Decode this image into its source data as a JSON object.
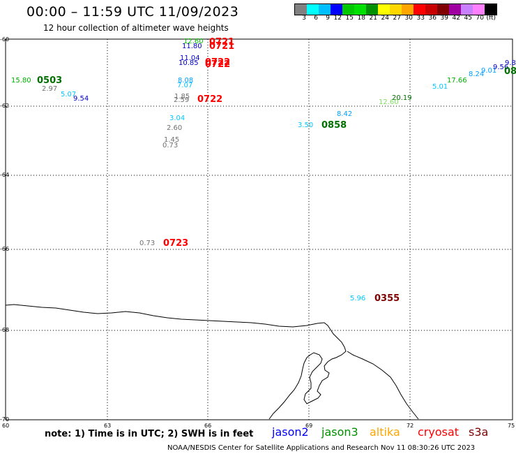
{
  "header": {
    "title": "00:00 – 11:59 UTC 11/09/2023",
    "subtitle": "12 hour collection of altimeter wave heights"
  },
  "color_scale": {
    "labels": [
      "3",
      "6",
      "9",
      "12",
      "15",
      "18",
      "21",
      "24",
      "27",
      "30",
      "33",
      "36",
      "39",
      "42",
      "45",
      "70",
      "(ft)"
    ],
    "colors": [
      "#808080",
      "#00ffff",
      "#00bfff",
      "#0000ff",
      "#00c800",
      "#00e000",
      "#009000",
      "#ffff00",
      "#ffd700",
      "#ffa500",
      "#ff0000",
      "#c80000",
      "#800000",
      "#a000a0",
      "#c880ff",
      "#ff80ff",
      "#000000"
    ]
  },
  "axes": {
    "lat_labels": [
      "-60",
      "-62",
      "-64",
      "-66",
      "-68",
      "-70"
    ],
    "lon_labels": [
      "60",
      "63",
      "66",
      "69",
      "72",
      "75"
    ]
  },
  "wave_heights": [
    {
      "text": "15.80",
      "color": "#00b000"
    },
    {
      "text": "2.97",
      "color": "#707070"
    },
    {
      "text": "5.07",
      "color": "#00c8ff"
    },
    {
      "text": "9.54",
      "color": "#0000c8"
    },
    {
      "text": "12.60",
      "color": "#00c800"
    },
    {
      "text": "11.80",
      "color": "#0000c8"
    },
    {
      "text": "11.04",
      "color": "#0000c8"
    },
    {
      "text": "10.85",
      "color": "#0000c8"
    },
    {
      "text": "8.08",
      "color": "#00a0ff"
    },
    {
      "text": "7.07",
      "color": "#00c8ff"
    },
    {
      "text": "1.85",
      "color": "#707070"
    },
    {
      "text": "2.59",
      "color": "#707070"
    },
    {
      "text": "3.04",
      "color": "#00c8ff"
    },
    {
      "text": "2.60",
      "color": "#707070"
    },
    {
      "text": "1.45",
      "color": "#707070"
    },
    {
      "text": "0.73",
      "color": "#707070"
    },
    {
      "text": "0.73",
      "color": "#707070"
    },
    {
      "text": "3.50",
      "color": "#00c8ff"
    },
    {
      "text": "8.42",
      "color": "#00a0ff"
    },
    {
      "text": "12.60",
      "color": "#80e060"
    },
    {
      "text": "20.19",
      "color": "#007000"
    },
    {
      "text": "5.01",
      "color": "#00c8ff"
    },
    {
      "text": "17.66",
      "color": "#00b000"
    },
    {
      "text": "8.24",
      "color": "#00a0ff"
    },
    {
      "text": "9.01",
      "color": "#00a0ff"
    },
    {
      "text": "9.56",
      "color": "#0000c8"
    },
    {
      "text": "9.8",
      "color": "#0000c8"
    },
    {
      "text": "5.96",
      "color": "#00c8ff"
    }
  ],
  "pass_times": [
    {
      "text": "0503",
      "color": "#007000"
    },
    {
      "text": "0721",
      "color": "#ff0000"
    },
    {
      "text": "0721",
      "color": "#ff0000"
    },
    {
      "text": "0722",
      "color": "#ff0000"
    },
    {
      "text": "0722",
      "color": "#ff0000"
    },
    {
      "text": "0722",
      "color": "#ff0000"
    },
    {
      "text": "0858",
      "color": "#007000"
    },
    {
      "text": "08",
      "color": "#007000"
    },
    {
      "text": "0723",
      "color": "#ff0000"
    },
    {
      "text": "0355",
      "color": "#800000"
    }
  ],
  "note": "note: 1) Time is in UTC; 2) SWH is in feet",
  "satellites": [
    {
      "name": "jason2",
      "color": "#0000ff"
    },
    {
      "name": "jason3",
      "color": "#009000"
    },
    {
      "name": "altika",
      "color": "#ffa500"
    },
    {
      "name": "cryosat",
      "color": "#ff0000"
    },
    {
      "name": "s3a",
      "color": "#800000"
    }
  ],
  "footer": "NOAA/NESDIS Center for Satellite Applications and Research    Nov 11 08:30:26 UTC 2023"
}
